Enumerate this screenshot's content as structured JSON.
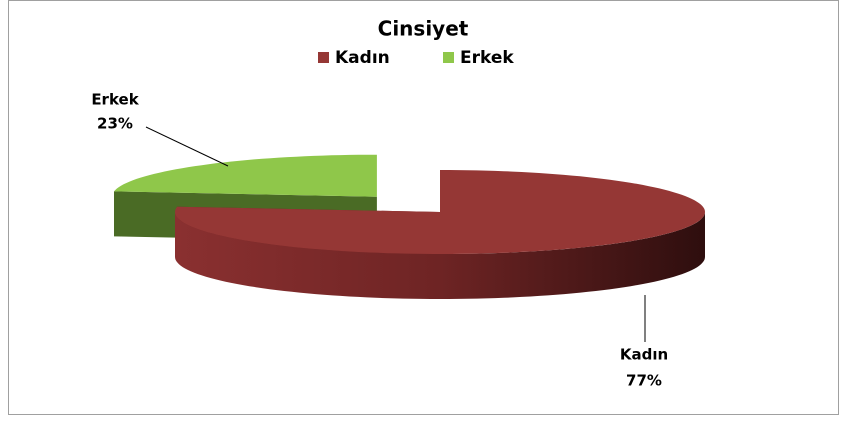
{
  "chart_data": {
    "type": "pie3d",
    "title": "Cinsiyet",
    "categories": [
      "Kadın",
      "Erkek"
    ],
    "values": [
      77,
      23
    ],
    "value_labels": [
      "77%",
      "23%"
    ],
    "colors": [
      "#953735",
      "#8fc74a"
    ],
    "legend": "top",
    "exploded": [
      false,
      true
    ]
  }
}
